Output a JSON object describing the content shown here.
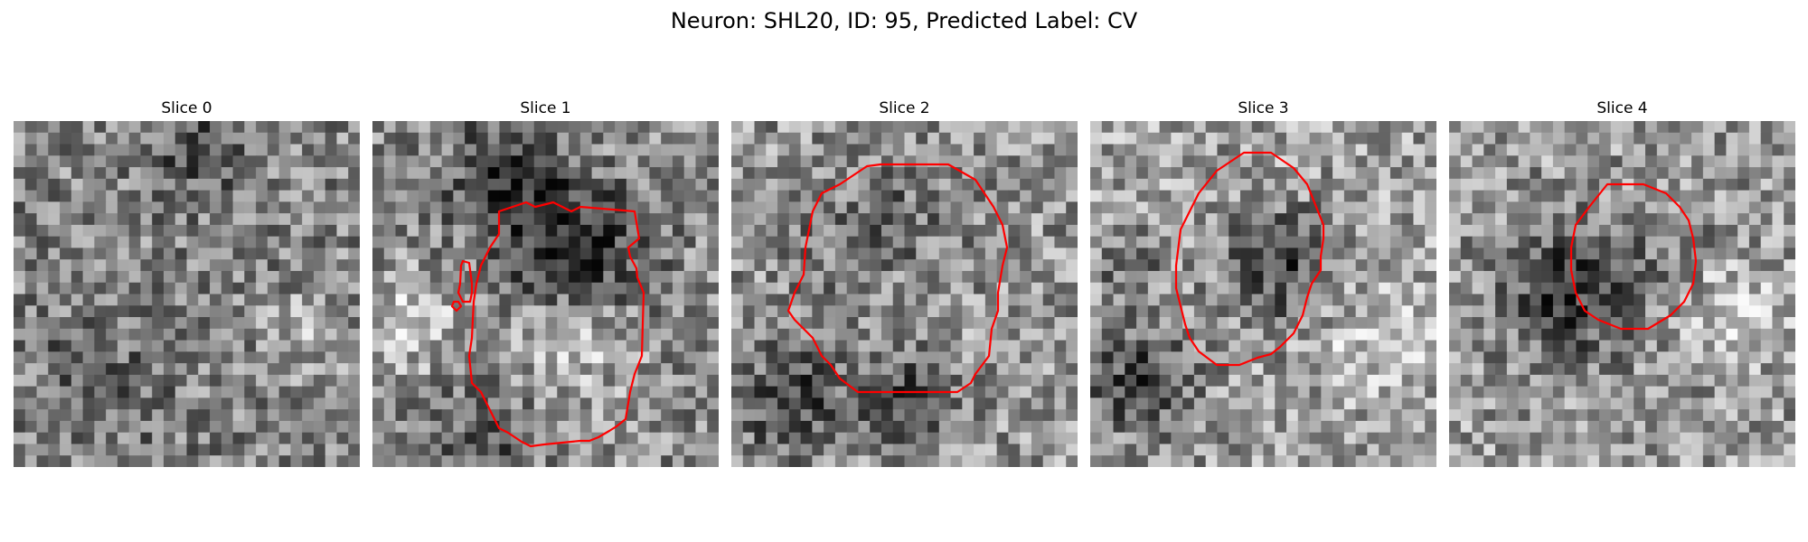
{
  "figure": {
    "suptitle": "Neuron: SHL20, ID: 95, Predicted Label: CV"
  },
  "panels": [
    {
      "title": "Slice 0",
      "seed": 11,
      "base": 0.52,
      "contour": false
    },
    {
      "title": "Slice 1",
      "seed": 23,
      "base": 0.55,
      "contour": true
    },
    {
      "title": "Slice 2",
      "seed": 37,
      "base": 0.58,
      "contour": true
    },
    {
      "title": "Slice 3",
      "seed": 41,
      "base": 0.62,
      "contour": true
    },
    {
      "title": "Slice 4",
      "seed": 53,
      "base": 0.6,
      "contour": true
    }
  ],
  "colors": {
    "contour": "#ff0000",
    "colormap": "gray"
  }
}
